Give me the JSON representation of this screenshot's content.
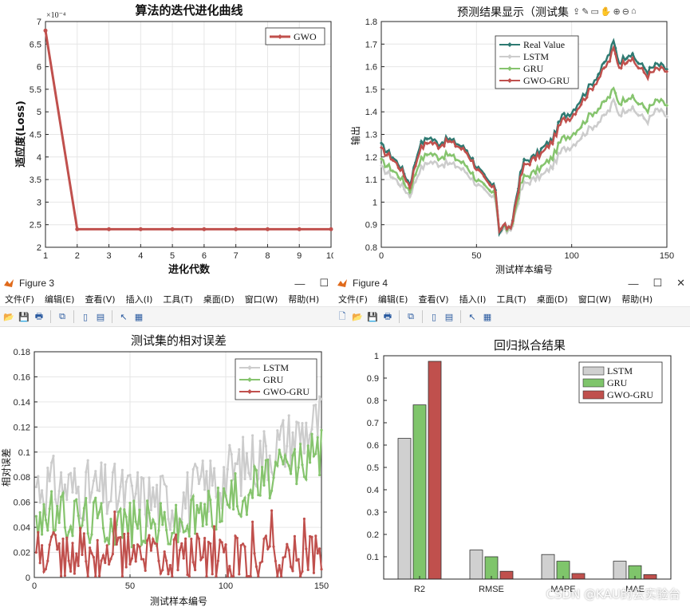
{
  "colors": {
    "gwo": "#c0504d",
    "gru": "#86c46e",
    "lstm": "#cccccc",
    "real": "#2e7a72",
    "bar_lstm": "#d0d0d0",
    "bar_gru": "#7fc56b",
    "bar_gwogru": "#c0504d"
  },
  "fig3_window": {
    "title": "Figure 3"
  },
  "fig4_window": {
    "title": "Figure 4"
  },
  "menus": {
    "fig3": [
      "文件(F)",
      "编辑(E)",
      "查看(V)",
      "插入(I)",
      "工具(T)",
      "桌面(D)",
      "窗口(W)",
      "帮助(H)"
    ],
    "fig4": [
      "文件(F)",
      "编辑(E)",
      "查看(V)",
      "插入(I)",
      "工具(T)",
      "桌面(D)",
      "窗口(W)",
      "帮助(H)"
    ]
  },
  "watermark": "CSDN @KAU的云实验台",
  "chart_data": [
    {
      "type": "line",
      "title": "算法的迭代进化曲线",
      "xlabel": "进化代数",
      "ylabel": "适应度(Loss)",
      "y_exponent": "×10⁻⁴",
      "xlim": [
        1,
        10
      ],
      "ylim": [
        2,
        7
      ],
      "xticks": [
        1,
        2,
        3,
        4,
        5,
        6,
        7,
        8,
        9,
        10
      ],
      "yticks": [
        2,
        2.5,
        3,
        3.5,
        4,
        4.5,
        5,
        5.5,
        6,
        6.5,
        7
      ],
      "grid": true,
      "legend_position": "top-right",
      "series": [
        {
          "name": "GWO",
          "x": [
            1,
            2,
            3,
            4,
            5,
            6,
            7,
            8,
            9,
            10
          ],
          "values": [
            6.8,
            2.4,
            2.4,
            2.4,
            2.4,
            2.4,
            2.4,
            2.4,
            2.4,
            2.4
          ]
        }
      ]
    },
    {
      "type": "line",
      "title": "预测结果显示（测试集",
      "xlabel": "测试样本编号",
      "ylabel": "输出",
      "xlim": [
        0,
        150
      ],
      "ylim": [
        0.8,
        1.8
      ],
      "xticks": [
        0,
        50,
        100,
        150
      ],
      "yticks": [
        0.8,
        0.9,
        1,
        1.1,
        1.2,
        1.3,
        1.4,
        1.5,
        1.6,
        1.7,
        1.8
      ],
      "grid": true,
      "legend_position": "top-center",
      "anchors_x": [
        0,
        5,
        10,
        15,
        20,
        25,
        30,
        35,
        40,
        45,
        50,
        55,
        60,
        62,
        65,
        68,
        70,
        73,
        75,
        80,
        85,
        90,
        95,
        100,
        105,
        110,
        115,
        120,
        122,
        125,
        130,
        135,
        140,
        145,
        150
      ],
      "series": [
        {
          "name": "Real Value",
          "values": [
            1.25,
            1.21,
            1.16,
            1.08,
            1.25,
            1.29,
            1.26,
            1.28,
            1.26,
            1.23,
            1.16,
            1.1,
            1.06,
            0.87,
            0.9,
            0.87,
            0.98,
            1.12,
            1.18,
            1.2,
            1.24,
            1.28,
            1.38,
            1.4,
            1.46,
            1.52,
            1.58,
            1.66,
            1.71,
            1.62,
            1.66,
            1.62,
            1.58,
            1.61,
            1.59
          ]
        },
        {
          "name": "LSTM",
          "values": [
            1.15,
            1.12,
            1.08,
            1.03,
            1.14,
            1.18,
            1.17,
            1.17,
            1.16,
            1.13,
            1.08,
            1.04,
            1.01,
            0.87,
            0.88,
            0.86,
            0.94,
            1.04,
            1.08,
            1.1,
            1.12,
            1.16,
            1.23,
            1.25,
            1.29,
            1.33,
            1.36,
            1.41,
            1.45,
            1.39,
            1.42,
            1.39,
            1.36,
            1.41,
            1.38
          ]
        },
        {
          "name": "GRU",
          "values": [
            1.18,
            1.15,
            1.11,
            1.05,
            1.18,
            1.22,
            1.2,
            1.21,
            1.19,
            1.16,
            1.1,
            1.06,
            1.03,
            0.88,
            0.89,
            0.87,
            0.95,
            1.07,
            1.11,
            1.13,
            1.16,
            1.2,
            1.28,
            1.3,
            1.34,
            1.39,
            1.42,
            1.47,
            1.5,
            1.44,
            1.47,
            1.44,
            1.41,
            1.45,
            1.43
          ]
        },
        {
          "name": "GWO-GRU",
          "values": [
            1.23,
            1.2,
            1.15,
            1.07,
            1.23,
            1.27,
            1.25,
            1.27,
            1.25,
            1.22,
            1.15,
            1.09,
            1.05,
            0.88,
            0.9,
            0.87,
            0.97,
            1.1,
            1.16,
            1.19,
            1.22,
            1.27,
            1.36,
            1.38,
            1.44,
            1.5,
            1.56,
            1.63,
            1.68,
            1.6,
            1.64,
            1.6,
            1.56,
            1.59,
            1.58
          ]
        }
      ]
    },
    {
      "type": "line",
      "title": "测试集的相对误差",
      "xlabel": "测试样本编号",
      "ylabel": "相对误差",
      "xlim": [
        0,
        150
      ],
      "ylim": [
        0,
        0.18
      ],
      "xticks": [
        0,
        50,
        100,
        150
      ],
      "yticks": [
        0,
        0.02,
        0.04,
        0.06,
        0.08,
        0.1,
        0.12,
        0.14,
        0.16,
        0.18
      ],
      "grid": true,
      "legend_position": "top-right",
      "series": [
        {
          "name": "LSTM",
          "level_start": 0.075,
          "level_mid": 0.06,
          "level_end": 0.125,
          "noise": 0.025
        },
        {
          "name": "GRU",
          "level_start": 0.05,
          "level_mid": 0.04,
          "level_end": 0.1,
          "noise": 0.02
        },
        {
          "name": "GWO-GRU",
          "level_start": 0.02,
          "level_mid": 0.015,
          "level_end": 0.015,
          "noise": 0.02
        }
      ]
    },
    {
      "type": "bar",
      "title": "回归拟合结果",
      "categories": [
        "R2",
        "RMSE",
        "MAPE",
        "MAE"
      ],
      "ylim": [
        0,
        1
      ],
      "yticks": [
        0.1,
        0.2,
        0.3,
        0.4,
        0.5,
        0.6,
        0.7,
        0.8,
        0.9,
        1
      ],
      "grid": false,
      "legend_position": "top-right",
      "series": [
        {
          "name": "LSTM",
          "values": [
            0.63,
            0.13,
            0.11,
            0.08
          ]
        },
        {
          "name": "GRU",
          "values": [
            0.78,
            0.1,
            0.08,
            0.06
          ]
        },
        {
          "name": "GWO-GRU",
          "values": [
            0.975,
            0.035,
            0.025,
            0.02
          ]
        }
      ]
    }
  ]
}
